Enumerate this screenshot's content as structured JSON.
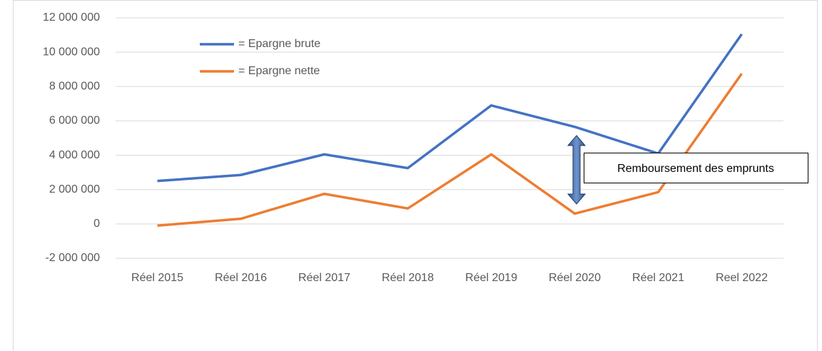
{
  "chart_data": {
    "type": "line",
    "categories": [
      "Réel 2015",
      "Réel 2016",
      "Réel 2017",
      "Réel 2018",
      "Réel 2019",
      "Réel 2020",
      "Réel 2021",
      "Reel 2022"
    ],
    "series": [
      {
        "name": "= Epargne brute",
        "color": "#4472c4",
        "values": [
          2500000,
          2850000,
          4050000,
          3250000,
          6900000,
          5650000,
          4100000,
          11050000
        ]
      },
      {
        "name": "= Epargne nette",
        "color": "#ed7d31",
        "values": [
          -100000,
          300000,
          1750000,
          900000,
          4050000,
          600000,
          1850000,
          8750000
        ]
      }
    ],
    "ylim": [
      -2000000,
      12000000
    ],
    "yticks": [
      {
        "value": -2000000,
        "label": "-2 000 000"
      },
      0,
      {
        "value": 2000000,
        "label": "2 000 000"
      },
      {
        "value": 4000000,
        "label": "4 000 000"
      },
      {
        "value": 6000000,
        "label": "6 000 000"
      },
      {
        "value": 8000000,
        "label": "8 000 000"
      },
      {
        "value": 10000000,
        "label": "10 000 000"
      },
      {
        "value": 12000000,
        "label": "12 000 000"
      }
    ],
    "grid": true,
    "annotation": "Remboursement des emprunts"
  }
}
